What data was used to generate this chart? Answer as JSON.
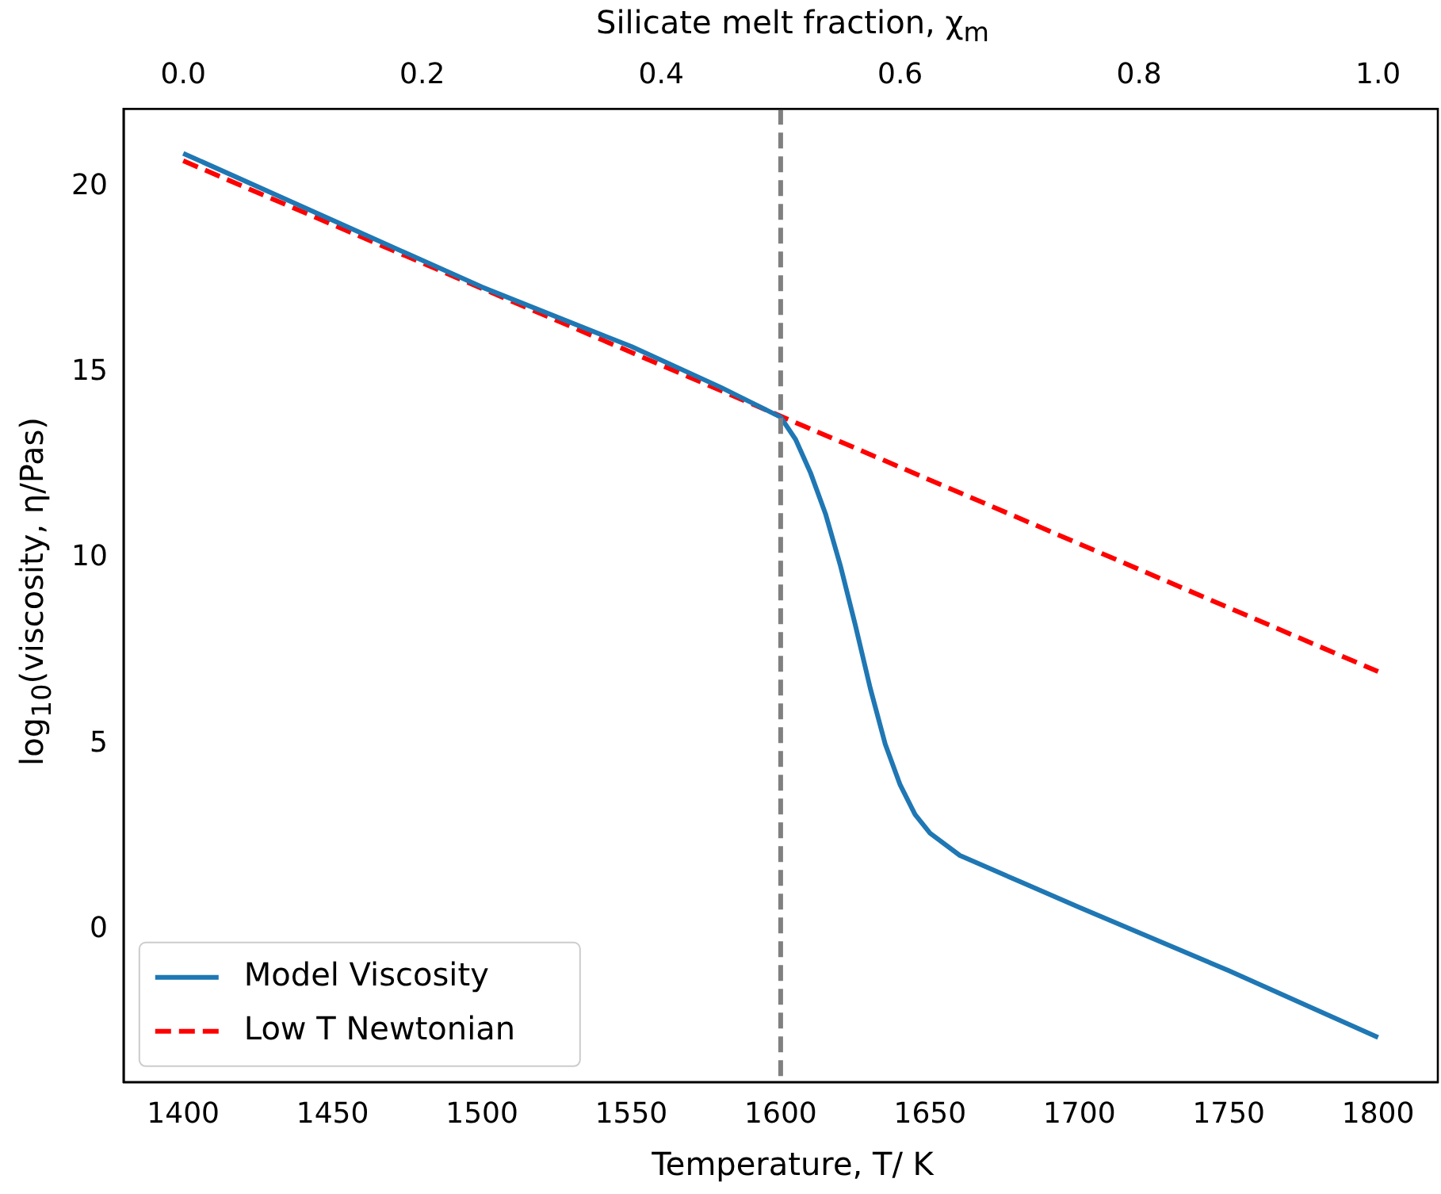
{
  "chart_data": {
    "type": "line",
    "xlabel": "Temperature, T/ K",
    "ylabel": "log$_{10}$(viscosity, η/Pas)",
    "x2label": "Silicate melt fraction, χ$_{m}$",
    "xlim": [
      1380,
      1820
    ],
    "xticks": [
      1400,
      1450,
      1500,
      1550,
      1600,
      1650,
      1700,
      1750,
      1800
    ],
    "x2lim": [
      -0.05,
      1.05
    ],
    "x2ticks": [
      {
        "value": 0,
        "label": "0.0"
      },
      {
        "value": 0.2,
        "label": "0.2"
      },
      {
        "value": 0.4,
        "label": "0.4"
      },
      {
        "value": 0.6,
        "label": "0.6"
      },
      {
        "value": 0.8,
        "label": "0.8"
      },
      {
        "value": 1,
        "label": "1.0"
      }
    ],
    "ylim": [
      -4.1,
      22.1
    ],
    "yticks": [
      0,
      5,
      10,
      15,
      20
    ],
    "series": [
      {
        "name": "Model Viscosity",
        "color": "#1f77b4",
        "line_style": "solid",
        "x": [
          1400,
          1450,
          1500,
          1550,
          1580,
          1590,
          1600,
          1605,
          1610,
          1615,
          1620,
          1625,
          1630,
          1635,
          1640,
          1645,
          1650,
          1660,
          1680,
          1700,
          1750,
          1800
        ],
        "values": [
          20.9,
          19.1,
          17.3,
          15.7,
          14.6,
          14.2,
          13.8,
          13.2,
          12.3,
          11.2,
          9.8,
          8.2,
          6.5,
          5.0,
          3.9,
          3.1,
          2.6,
          2.0,
          1.3,
          0.6,
          -1.1,
          -2.9
        ]
      },
      {
        "name": "Low T Newtonian",
        "color": "#ff0000",
        "line_style": "dashed",
        "x": [
          1400,
          1800
        ],
        "values": [
          20.7,
          6.95
        ]
      }
    ],
    "ref_lines": [
      {
        "axis": "x",
        "value": 1600,
        "color": "#808080",
        "line_style": "dashed"
      }
    ],
    "legend": "bottom left",
    "grid": false,
    "marker": "none"
  }
}
